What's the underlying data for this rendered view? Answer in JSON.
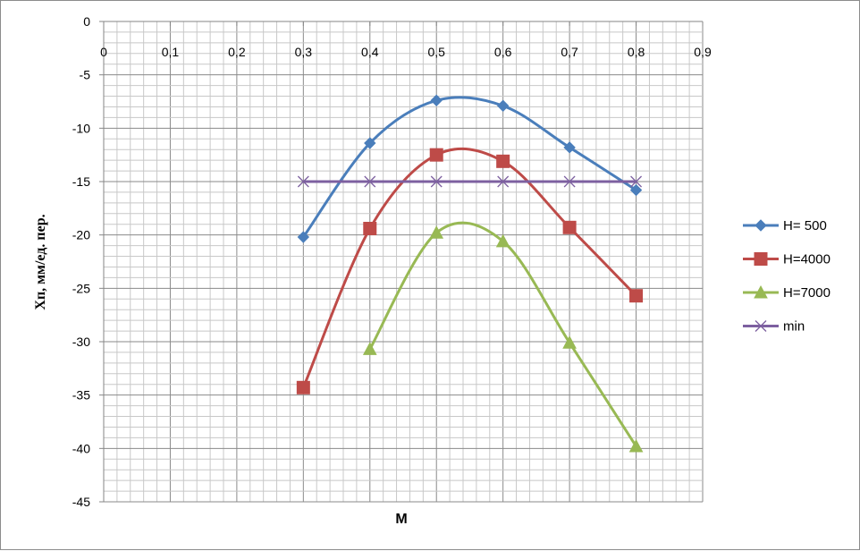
{
  "chart_data": {
    "type": "line",
    "xlabel": "M",
    "ylabel": "Хп, мм/ед. пер.",
    "xlim": [
      0,
      0.9
    ],
    "ylim": [
      -45,
      0
    ],
    "x_ticks": [
      "0",
      "0,1",
      "0,2",
      "0,3",
      "0,4",
      "0,5",
      "0,6",
      "0,7",
      "0,8",
      "0,9"
    ],
    "y_ticks": [
      "0",
      "-5",
      "-10",
      "-15",
      "-20",
      "-25",
      "-30",
      "-35",
      "-40",
      "-45"
    ],
    "x_axis_position": "top",
    "grid": true,
    "legend_position": "right",
    "series": [
      {
        "name": "H= 500",
        "color": "#4a7ebb",
        "marker": "diamond",
        "x": [
          0.3,
          0.4,
          0.5,
          0.6,
          0.7,
          0.8
        ],
        "y": [
          -20.2,
          -11.4,
          -7.4,
          -7.9,
          -11.8,
          -15.8
        ]
      },
      {
        "name": "H=4000",
        "color": "#be4b48",
        "marker": "square",
        "x": [
          0.3,
          0.4,
          0.5,
          0.6,
          0.7,
          0.8
        ],
        "y": [
          -34.3,
          -19.4,
          -12.5,
          -13.1,
          -19.3,
          -25.7
        ]
      },
      {
        "name": "H=7000",
        "color": "#98b954",
        "marker": "triangle",
        "x": [
          0.4,
          0.5,
          0.6,
          0.7,
          0.8
        ],
        "y": [
          -30.7,
          -19.8,
          -20.6,
          -30.1,
          -39.8
        ]
      },
      {
        "name": "min",
        "color": "#7d60a0",
        "marker": "x",
        "x": [
          0.3,
          0.4,
          0.5,
          0.6,
          0.7,
          0.8
        ],
        "y": [
          -15,
          -15,
          -15,
          -15,
          -15,
          -15
        ]
      }
    ]
  }
}
